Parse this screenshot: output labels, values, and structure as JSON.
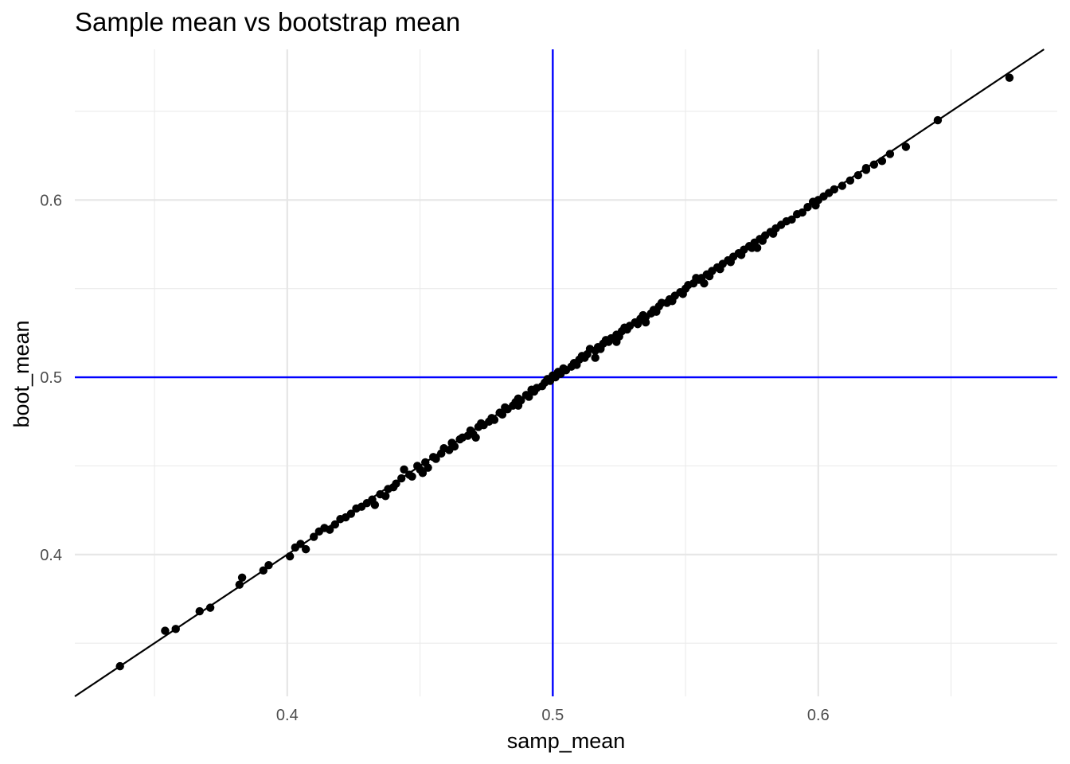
{
  "chart_data": {
    "type": "scatter",
    "title": "Sample mean vs bootstrap mean",
    "xlabel": "samp_mean",
    "ylabel": "boot_mean",
    "xlim": [
      0.32,
      0.69
    ],
    "ylim": [
      0.32,
      0.685
    ],
    "x_ticks": [
      0.4,
      0.5,
      0.6
    ],
    "x_tick_labels": [
      "0.4",
      "0.5",
      "0.6"
    ],
    "y_ticks": [
      0.4,
      0.5,
      0.6
    ],
    "y_tick_labels": [
      "0.4",
      "0.5",
      "0.6"
    ],
    "x_minor_ticks": [
      0.35,
      0.45,
      0.55,
      0.65
    ],
    "y_minor_ticks": [
      0.35,
      0.45,
      0.55,
      0.65
    ],
    "grid": true,
    "reference_lines": {
      "vertical_x": 0.5,
      "horizontal_y": 0.5,
      "color": "#0000ff",
      "identity_line": {
        "slope": 1,
        "intercept": 0,
        "color": "#000000"
      }
    },
    "point_color": "#000000",
    "points": [
      [
        0.337,
        0.337
      ],
      [
        0.354,
        0.357
      ],
      [
        0.358,
        0.358
      ],
      [
        0.367,
        0.368
      ],
      [
        0.371,
        0.37
      ],
      [
        0.382,
        0.383
      ],
      [
        0.383,
        0.387
      ],
      [
        0.391,
        0.391
      ],
      [
        0.393,
        0.394
      ],
      [
        0.401,
        0.399
      ],
      [
        0.403,
        0.404
      ],
      [
        0.405,
        0.406
      ],
      [
        0.407,
        0.403
      ],
      [
        0.41,
        0.41
      ],
      [
        0.412,
        0.413
      ],
      [
        0.414,
        0.415
      ],
      [
        0.416,
        0.414
      ],
      [
        0.418,
        0.417
      ],
      [
        0.42,
        0.42
      ],
      [
        0.422,
        0.421
      ],
      [
        0.424,
        0.423
      ],
      [
        0.426,
        0.426
      ],
      [
        0.428,
        0.427
      ],
      [
        0.43,
        0.429
      ],
      [
        0.432,
        0.431
      ],
      [
        0.433,
        0.428
      ],
      [
        0.435,
        0.434
      ],
      [
        0.437,
        0.433
      ],
      [
        0.438,
        0.437
      ],
      [
        0.44,
        0.438
      ],
      [
        0.441,
        0.44
      ],
      [
        0.443,
        0.443
      ],
      [
        0.444,
        0.448
      ],
      [
        0.446,
        0.445
      ],
      [
        0.447,
        0.444
      ],
      [
        0.449,
        0.45
      ],
      [
        0.45,
        0.448
      ],
      [
        0.452,
        0.452
      ],
      [
        0.453,
        0.449
      ],
      [
        0.455,
        0.455
      ],
      [
        0.456,
        0.454
      ],
      [
        0.458,
        0.457
      ],
      [
        0.459,
        0.46
      ],
      [
        0.461,
        0.459
      ],
      [
        0.462,
        0.463
      ],
      [
        0.463,
        0.461
      ],
      [
        0.465,
        0.465
      ],
      [
        0.466,
        0.466
      ],
      [
        0.468,
        0.467
      ],
      [
        0.469,
        0.47
      ],
      [
        0.47,
        0.468
      ],
      [
        0.472,
        0.472
      ],
      [
        0.473,
        0.474
      ],
      [
        0.474,
        0.473
      ],
      [
        0.476,
        0.475
      ],
      [
        0.477,
        0.477
      ],
      [
        0.478,
        0.476
      ],
      [
        0.48,
        0.48
      ],
      [
        0.481,
        0.479
      ],
      [
        0.482,
        0.483
      ],
      [
        0.483,
        0.482
      ],
      [
        0.485,
        0.484
      ],
      [
        0.486,
        0.486
      ],
      [
        0.487,
        0.488
      ],
      [
        0.488,
        0.487
      ],
      [
        0.49,
        0.49
      ],
      [
        0.491,
        0.489
      ],
      [
        0.492,
        0.493
      ],
      [
        0.493,
        0.492
      ],
      [
        0.494,
        0.494
      ],
      [
        0.496,
        0.495
      ],
      [
        0.497,
        0.497
      ],
      [
        0.498,
        0.499
      ],
      [
        0.499,
        0.498
      ],
      [
        0.5,
        0.501
      ],
      [
        0.501,
        0.5
      ],
      [
        0.502,
        0.503
      ],
      [
        0.503,
        0.502
      ],
      [
        0.504,
        0.505
      ],
      [
        0.505,
        0.504
      ],
      [
        0.507,
        0.506
      ],
      [
        0.508,
        0.508
      ],
      [
        0.509,
        0.507
      ],
      [
        0.51,
        0.51
      ],
      [
        0.511,
        0.512
      ],
      [
        0.512,
        0.511
      ],
      [
        0.513,
        0.513
      ],
      [
        0.514,
        0.516
      ],
      [
        0.516,
        0.515
      ],
      [
        0.517,
        0.517
      ],
      [
        0.518,
        0.516
      ],
      [
        0.519,
        0.519
      ],
      [
        0.52,
        0.521
      ],
      [
        0.521,
        0.52
      ],
      [
        0.522,
        0.522
      ],
      [
        0.524,
        0.524
      ],
      [
        0.525,
        0.523
      ],
      [
        0.526,
        0.526
      ],
      [
        0.527,
        0.528
      ],
      [
        0.528,
        0.527
      ],
      [
        0.529,
        0.529
      ],
      [
        0.531,
        0.531
      ],
      [
        0.532,
        0.53
      ],
      [
        0.533,
        0.533
      ],
      [
        0.534,
        0.535
      ],
      [
        0.535,
        0.534
      ],
      [
        0.537,
        0.536
      ],
      [
        0.538,
        0.538
      ],
      [
        0.539,
        0.537
      ],
      [
        0.54,
        0.54
      ],
      [
        0.541,
        0.542
      ],
      [
        0.543,
        0.542
      ],
      [
        0.544,
        0.544
      ],
      [
        0.545,
        0.543
      ],
      [
        0.546,
        0.546
      ],
      [
        0.548,
        0.548
      ],
      [
        0.549,
        0.547
      ],
      [
        0.55,
        0.55
      ],
      [
        0.551,
        0.552
      ],
      [
        0.553,
        0.553
      ],
      [
        0.554,
        0.556
      ],
      [
        0.555,
        0.555
      ],
      [
        0.556,
        0.556
      ],
      [
        0.558,
        0.558
      ],
      [
        0.559,
        0.557
      ],
      [
        0.56,
        0.56
      ],
      [
        0.562,
        0.562
      ],
      [
        0.563,
        0.561
      ],
      [
        0.564,
        0.564
      ],
      [
        0.566,
        0.566
      ],
      [
        0.567,
        0.565
      ],
      [
        0.568,
        0.568
      ],
      [
        0.57,
        0.57
      ],
      [
        0.571,
        0.569
      ],
      [
        0.572,
        0.572
      ],
      [
        0.574,
        0.574
      ],
      [
        0.575,
        0.573
      ],
      [
        0.576,
        0.576
      ],
      [
        0.578,
        0.578
      ],
      [
        0.579,
        0.577
      ],
      [
        0.58,
        0.58
      ],
      [
        0.582,
        0.582
      ],
      [
        0.583,
        0.581
      ],
      [
        0.584,
        0.584
      ],
      [
        0.586,
        0.586
      ],
      [
        0.588,
        0.588
      ],
      [
        0.59,
        0.589
      ],
      [
        0.592,
        0.592
      ],
      [
        0.594,
        0.593
      ],
      [
        0.596,
        0.596
      ],
      [
        0.598,
        0.599
      ],
      [
        0.6,
        0.6
      ],
      [
        0.602,
        0.602
      ],
      [
        0.604,
        0.604
      ],
      [
        0.606,
        0.606
      ],
      [
        0.609,
        0.608
      ],
      [
        0.612,
        0.611
      ],
      [
        0.615,
        0.614
      ],
      [
        0.618,
        0.617
      ],
      [
        0.621,
        0.62
      ],
      [
        0.624,
        0.622
      ],
      [
        0.627,
        0.626
      ],
      [
        0.633,
        0.63
      ],
      [
        0.645,
        0.645
      ],
      [
        0.672,
        0.669
      ],
      [
        0.451,
        0.446
      ],
      [
        0.471,
        0.466
      ],
      [
        0.487,
        0.484
      ],
      [
        0.516,
        0.511
      ],
      [
        0.524,
        0.52
      ],
      [
        0.535,
        0.531
      ],
      [
        0.557,
        0.553
      ],
      [
        0.577,
        0.573
      ],
      [
        0.599,
        0.597
      ],
      [
        0.618,
        0.618
      ]
    ]
  }
}
